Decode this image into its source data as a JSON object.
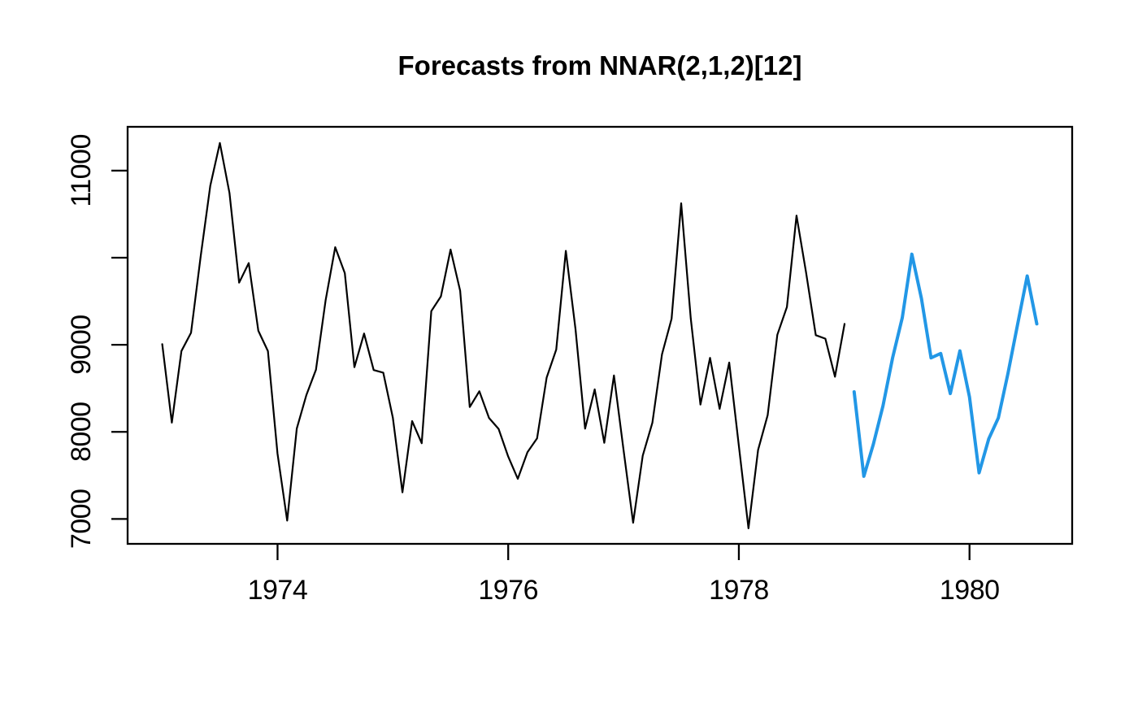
{
  "title": "Forecasts from NNAR(2,1,2)[12]",
  "colors": {
    "background": "#ffffff",
    "frame": "#000000",
    "text": "#000000",
    "observed_line": "#000000",
    "forecast_line": "#2297E6"
  },
  "chart_data": {
    "type": "line",
    "title": "Forecasts from NNAR(2,1,2)[12]",
    "xlabel": "",
    "ylabel": "",
    "grid": "off",
    "legend": "none",
    "frame": "box",
    "x_axis": {
      "range": [
        1972.7,
        1980.89
      ],
      "tick_values": [
        1974,
        1976,
        1978,
        1980
      ],
      "tick_labels": [
        "1974",
        "1976",
        "1978",
        "1980"
      ]
    },
    "y_axis": {
      "range": [
        6714,
        11503
      ],
      "tick_values": [
        7000,
        8000,
        9000,
        10000,
        11000
      ],
      "tick_labels": [
        "7000",
        "8000",
        "9000",
        "",
        "11000"
      ]
    },
    "series": [
      {
        "name": "observed",
        "role": "historical-data",
        "color": "#000000",
        "line_width": 2.2,
        "start": 1973.0,
        "frequency": 12,
        "values": [
          9007,
          8106,
          8928,
          9137,
          10017,
          10826,
          11317,
          10744,
          9713,
          9938,
          9161,
          8927,
          7750,
          6981,
          8038,
          8422,
          8714,
          9512,
          10120,
          9823,
          8743,
          9129,
          8710,
          8680,
          8162,
          7306,
          8124,
          7870,
          9387,
          9556,
          10093,
          9620,
          8285,
          8466,
          8160,
          8034,
          7717,
          7461,
          7767,
          7925,
          8623,
          8945,
          10078,
          9179,
          8037,
          8488,
          7874,
          8647,
          7792,
          6957,
          7726,
          8106,
          8890,
          9299,
          10625,
          9302,
          8314,
          8850,
          8265,
          8796,
          7836,
          6892,
          7791,
          8192,
          9115,
          9434,
          10484,
          9827,
          9110,
          9070,
          8633,
          9240
        ]
      },
      {
        "name": "forecast-mean",
        "role": "point-forecast",
        "color": "#2297E6",
        "line_width": 4,
        "start": 1979.0,
        "frequency": 12,
        "values": [
          8460,
          7490,
          7860,
          8300,
          8850,
          9310,
          10040,
          9530,
          8850,
          8900,
          8440,
          8930,
          8400,
          7530,
          7920,
          8160,
          8670,
          9230,
          9790,
          9240
        ]
      }
    ]
  }
}
